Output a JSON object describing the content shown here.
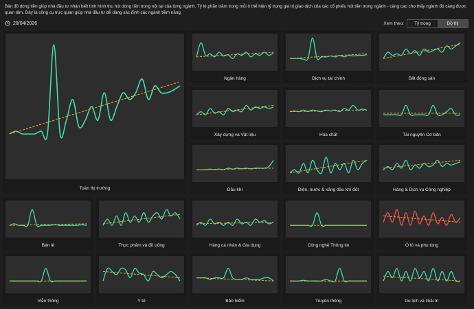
{
  "header": {
    "description": "Bản đồ dòng tiền giúp nhà đầu tư nhận biết tình hình thu hút dòng tiền trong nội tại của từng ngành. Tỷ lệ phần trăm trong mỗi ô thể hiện tỷ trọng giá trị giao dịch của các cổ phiếu hút tiền trong ngành - càng cao cho thấy ngành đó càng được quan tâm. Đây là công cụ trực quan giúp nhà đầu tư dễ dàng xác định các ngành tiềm năng.",
    "date": "28/04/2026",
    "date_icon": "clock-icon",
    "view_label": "Xem theo:",
    "view_options": [
      "Tỷ trọng",
      "Đồ thị"
    ],
    "view_selected": "Đồ thị"
  },
  "colors": {
    "background": "#1e1e1e",
    "plot_bg": "#2d2d2d",
    "line_up": "#3ee0b0",
    "line_down": "#ff4d4d",
    "trend": "#f5a623"
  },
  "chart_data": [
    {
      "type": "line",
      "title": "Toàn thị trường",
      "color": "up",
      "values": [
        0.3,
        0.32,
        0.3,
        0.3,
        0.3,
        0.32,
        0.3,
        0.95,
        0.3,
        0.4,
        0.55,
        0.35,
        0.4,
        0.5,
        0.4,
        0.6,
        0.4,
        0.5,
        0.6,
        0.55,
        0.6,
        0.7,
        0.55,
        0.65,
        0.6,
        0.6,
        0.62,
        0.65
      ],
      "trend": [
        0.3,
        0.68
      ]
    },
    {
      "type": "line",
      "title": "Ngân hàng",
      "color": "up",
      "values": [
        0.35,
        0.8,
        0.4,
        0.45,
        0.35,
        0.5,
        0.38,
        0.42,
        0.3,
        0.45,
        0.4,
        0.5,
        0.35,
        0.45,
        0.4,
        0.5,
        0.4,
        0.48
      ],
      "trend": [
        0.35,
        0.5
      ]
    },
    {
      "type": "line",
      "title": "Dịch vụ tài chính",
      "color": "up",
      "values": [
        0.3,
        0.3,
        0.3,
        0.28,
        0.3,
        0.95,
        0.3,
        0.35,
        0.35,
        0.38,
        0.35,
        0.4,
        0.35,
        0.4,
        0.38,
        0.4,
        0.4,
        0.42
      ],
      "trend": [
        0.3,
        0.45
      ]
    },
    {
      "type": "line",
      "title": "Bất động sản",
      "color": "up",
      "values": [
        0.3,
        0.5,
        0.4,
        0.45,
        0.4,
        0.6,
        0.45,
        0.55,
        0.4,
        0.6,
        0.5,
        0.55,
        0.6,
        0.5,
        0.7,
        0.6,
        0.7,
        0.8
      ],
      "trend": [
        0.3,
        0.75
      ]
    },
    {
      "type": "line",
      "title": "Xây dựng và Vật liệu",
      "color": "up",
      "values": [
        0.3,
        0.4,
        0.3,
        0.5,
        0.35,
        0.4,
        0.3,
        0.5,
        0.4,
        0.45,
        0.4,
        0.6,
        0.45,
        0.55,
        0.5,
        0.55,
        0.5,
        0.55
      ],
      "trend": [
        0.3,
        0.6
      ]
    },
    {
      "type": "line",
      "title": "Hóa chất",
      "color": "up",
      "values": [
        0.4,
        0.42,
        0.4,
        0.45,
        0.4,
        0.45,
        0.42,
        0.4,
        0.45,
        0.42,
        0.45,
        0.4,
        0.5,
        0.45,
        0.6,
        0.45,
        0.48,
        0.45
      ],
      "trend": [
        0.4,
        0.45
      ]
    },
    {
      "type": "line",
      "title": "Tài nguyên Cơ bản",
      "color": "up",
      "values": [
        0.3,
        0.3,
        0.3,
        0.3,
        0.3,
        0.6,
        0.3,
        0.3,
        0.3,
        0.3,
        0.3,
        0.6,
        0.3,
        0.3,
        0.4,
        0.5,
        0.3,
        0.3
      ],
      "trend": [
        0.35,
        0.35
      ]
    },
    {
      "type": "line",
      "title": "Dầu khí",
      "color": "up",
      "values": [
        0.3,
        0.3,
        0.3,
        0.32,
        0.3,
        0.32,
        0.3,
        0.35,
        0.32,
        0.35,
        0.33,
        0.35,
        0.33,
        0.35,
        0.35,
        0.35,
        0.4,
        0.6
      ],
      "trend": [
        0.3,
        0.35
      ]
    },
    {
      "type": "line",
      "title": "Điện, nước & xăng dầu khí đốt",
      "color": "up",
      "values": [
        0.2,
        0.3,
        0.2,
        0.5,
        0.2,
        0.6,
        0.3,
        0.2,
        0.7,
        0.2,
        0.5,
        0.3,
        0.5,
        0.2,
        0.6,
        0.3,
        0.5,
        0.6
      ],
      "trend": [
        0.2,
        0.6
      ]
    },
    {
      "type": "line",
      "title": "Hàng & Dịch vụ Công nghiệp",
      "color": "up",
      "values": [
        0.3,
        0.4,
        0.3,
        0.5,
        0.35,
        0.6,
        0.3,
        0.45,
        0.35,
        0.5,
        0.4,
        0.45,
        0.6,
        0.4,
        0.5,
        0.45,
        0.5,
        0.55
      ],
      "trend": [
        0.35,
        0.6
      ]
    },
    {
      "type": "line",
      "title": "Bán lẻ",
      "color": "up",
      "values": [
        0.3,
        0.35,
        0.3,
        0.3,
        0.3,
        0.8,
        0.3,
        0.3,
        0.3,
        0.3,
        0.32,
        0.3,
        0.3,
        0.3,
        0.3,
        0.3,
        0.32,
        0.3
      ],
      "trend": [
        0.3,
        0.35
      ]
    },
    {
      "type": "line",
      "title": "Thực phẩm và đồ uống",
      "color": "up",
      "values": [
        0.3,
        0.5,
        0.3,
        0.6,
        0.3,
        0.7,
        0.4,
        0.6,
        0.4,
        0.7,
        0.4,
        0.6,
        0.7,
        0.5,
        0.8,
        0.6,
        0.7,
        0.5
      ],
      "trend": [
        0.35,
        0.65
      ]
    },
    {
      "type": "line",
      "title": "Hàng cá nhân & Gia dụng",
      "color": "up",
      "values": [
        0.3,
        0.4,
        0.3,
        0.5,
        0.35,
        0.4,
        0.3,
        0.4,
        0.3,
        0.5,
        0.35,
        0.4,
        0.3,
        0.5,
        0.4,
        0.45,
        0.35,
        0.4
      ],
      "trend": [
        0.35,
        0.4
      ]
    },
    {
      "type": "line",
      "title": "Công nghệ Thông tin",
      "color": "up",
      "values": [
        0.3,
        0.3,
        0.3,
        0.3,
        0.3,
        0.3,
        0.7,
        0.3,
        0.3,
        0.3,
        0.3,
        0.3,
        0.3,
        0.3,
        0.3,
        0.3,
        0.3,
        0.3
      ],
      "trend": [
        0.3,
        0.3
      ]
    },
    {
      "type": "line",
      "title": "Ô tô và phụ tùng",
      "color": "down",
      "values": [
        0.4,
        0.7,
        0.4,
        0.8,
        0.3,
        0.7,
        0.3,
        0.75,
        0.35,
        0.6,
        0.3,
        0.7,
        0.35,
        0.55,
        0.3,
        0.65,
        0.4,
        0.55
      ],
      "trend": [
        0.6,
        0.4
      ]
    },
    {
      "type": "line",
      "title": "Viễn thông",
      "color": "up",
      "values": [
        0.3,
        0.3,
        0.3,
        0.3,
        0.3,
        0.3,
        0.3,
        0.3,
        0.7,
        0.3,
        0.3,
        0.3,
        0.3,
        0.3,
        0.3,
        0.3,
        0.3,
        0.3
      ],
      "trend": [
        0.3,
        0.3
      ]
    },
    {
      "type": "line",
      "title": "Y tế",
      "color": "up",
      "values": [
        0.3,
        0.7,
        0.6,
        0.5,
        0.7,
        0.65,
        0.4,
        0.7,
        0.55,
        0.5,
        0.3,
        0.6,
        0.5,
        0.4,
        0.5,
        0.6,
        0.5,
        0.3
      ],
      "trend": [
        0.6,
        0.4
      ]
    },
    {
      "type": "line",
      "title": "Bảo hiểm",
      "color": "up",
      "values": [
        0.4,
        0.4,
        0.4,
        0.35,
        0.4,
        0.4,
        0.4,
        0.7,
        0.4,
        0.35,
        0.35,
        0.4,
        0.35,
        0.35,
        0.35,
        0.4,
        0.4,
        0.3
      ],
      "trend": [
        0.4,
        0.3
      ]
    },
    {
      "type": "line",
      "title": "Truyền thông",
      "color": "up",
      "values": [
        0.3,
        0.3,
        0.3,
        0.32,
        0.3,
        0.3,
        0.3,
        0.3,
        0.35,
        0.3,
        0.3,
        0.7,
        0.3,
        0.3,
        0.3,
        0.3,
        0.3,
        0.3
      ],
      "trend": [
        0.3,
        0.3
      ]
    },
    {
      "type": "line",
      "title": "Du lịch và Giải trí",
      "color": "up",
      "values": [
        0.3,
        0.6,
        0.4,
        0.7,
        0.3,
        0.6,
        0.3,
        0.7,
        0.4,
        0.6,
        0.3,
        0.7,
        0.3,
        0.6,
        0.3,
        0.6,
        0.3,
        0.3
      ],
      "trend": [
        0.45,
        0.3
      ]
    }
  ]
}
